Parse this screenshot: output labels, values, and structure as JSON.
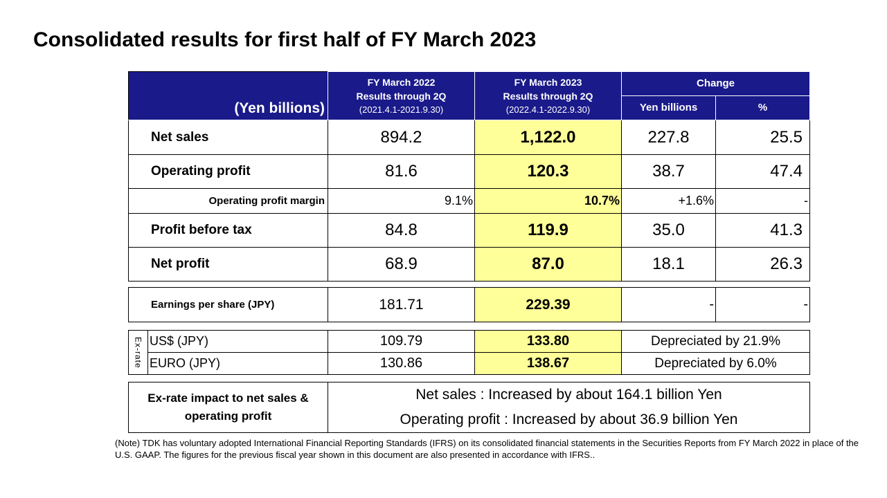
{
  "title": "Consolidated results for first half of FY March 2023",
  "header": {
    "unit_label": "(Yen billions)",
    "fy2022_title": "FY March 2022",
    "fy2022_subtitle": "Results through 2Q",
    "fy2022_period": "(2021.4.1-2021.9.30)",
    "fy2023_title": "FY March 2023",
    "fy2023_subtitle": "Results through 2Q",
    "fy2023_period": "(2022.4.1-2022.9.30)",
    "change": "Change",
    "change_yen": "Yen billions",
    "change_pct": "%"
  },
  "rows": [
    {
      "label": "Net sales",
      "fy2022": "894.2",
      "fy2023": "1,122.0",
      "change_yen": "227.8",
      "change_pct": "25.5"
    },
    {
      "label": "Operating profit",
      "fy2022": "81.6",
      "fy2023": "120.3",
      "change_yen": "38.7",
      "change_pct": "47.4"
    },
    {
      "label": "Operating profit margin",
      "fy2022": "9.1%",
      "fy2023": "10.7%",
      "change_yen": "+1.6%",
      "change_pct": "-"
    },
    {
      "label": "Profit before tax",
      "fy2022": "84.8",
      "fy2023": "119.9",
      "change_yen": "35.0",
      "change_pct": "41.3"
    },
    {
      "label": "Net profit",
      "fy2022": "68.9",
      "fy2023": "87.0",
      "change_yen": "18.1",
      "change_pct": "26.3"
    }
  ],
  "eps": {
    "label": "Earnings per share (JPY)",
    "fy2022": "181.71",
    "fy2023": "229.39",
    "change_yen": "-",
    "change_pct": "-"
  },
  "exrate": {
    "tag": "Ex-rate",
    "rows": [
      {
        "label": "US$ (JPY)",
        "fy2022": "109.79",
        "fy2023": "133.80",
        "change": "Depreciated by 21.9%"
      },
      {
        "label": "EURO (JPY)",
        "fy2022": "130.86",
        "fy2023": "138.67",
        "change": "Depreciated by 6.0%"
      }
    ]
  },
  "impact": {
    "label": "Ex-rate impact to net sales & operating profit",
    "line1": "Net sales : Increased by about 164.1 billion Yen",
    "line2": "Operating profit : Increased by about 36.9 billion Yen"
  },
  "note": "(Note) TDK has voluntary adopted International  Financial Reporting Standards (IFRS) on its consolidated financial statements in the Securities Reports from FY March 2022 in place of the U.S. GAAP.  The figures for the previous fiscal year shown in this document are also presented in accordance with IFRS..",
  "colors": {
    "header_bg": "#1a1a8a",
    "highlight": "#ffff99"
  }
}
